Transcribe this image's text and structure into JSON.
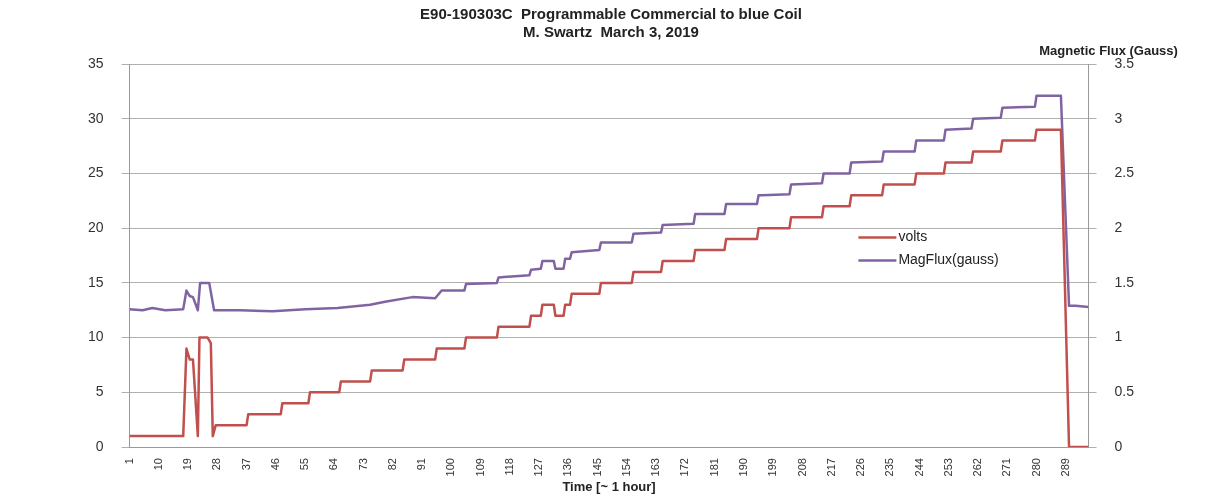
{
  "chart_data": {
    "type": "line",
    "title": "E90-190303C  Programmable Commercial to blue Coil",
    "subtitle": "M. Swartz  March 3, 2019",
    "xlabel": "Time [~ 1 hour]",
    "y2label": "Magnetic Flux (Gauss)",
    "xlim": [
      1,
      296
    ],
    "xticks": [
      1,
      10,
      19,
      28,
      37,
      46,
      55,
      64,
      73,
      82,
      91,
      100,
      109,
      118,
      127,
      136,
      145,
      154,
      163,
      172,
      181,
      190,
      199,
      208,
      217,
      226,
      235,
      244,
      253,
      262,
      271,
      280,
      289
    ],
    "ylim": [
      0,
      35
    ],
    "yticks": [
      0,
      5,
      10,
      15,
      20,
      25,
      30,
      35
    ],
    "y2lim": [
      0,
      3.5
    ],
    "y2ticks": [
      0,
      0.5,
      1,
      1.5,
      2,
      2.5,
      3,
      3.5
    ],
    "grid": "y",
    "legend": "right",
    "marker": "none",
    "line_style": "solid",
    "series": [
      {
        "name": "volts",
        "color": "#c0504d",
        "x": [
          1,
          17.5,
          18.5,
          19.5,
          20.5,
          22,
          22.5,
          25,
          26,
          26.6,
          27.5,
          37,
          37.5,
          47.5,
          48,
          56,
          56.5,
          65.5,
          66,
          75,
          75.5,
          85,
          85.5,
          95,
          95.5,
          104,
          104.5,
          114,
          114.5,
          124,
          124.5,
          127.5,
          128,
          131.5,
          132,
          134.5,
          135,
          136.5,
          137,
          145.5,
          146,
          155.5,
          156,
          164.5,
          165,
          174.5,
          175,
          184,
          184.5,
          194,
          194.5,
          204,
          204.5,
          214,
          214.5,
          222.5,
          223,
          232.5,
          233,
          242.5,
          243,
          251.5,
          252,
          260,
          260.5,
          269,
          269.5,
          279.5,
          280,
          287.5,
          290,
          296
        ],
        "values": [
          1,
          1,
          9,
          8,
          8,
          1,
          10,
          10,
          9.5,
          1,
          2,
          2,
          3,
          3,
          4,
          4,
          5,
          5,
          6,
          6,
          7,
          7,
          8,
          8,
          9,
          9,
          10,
          10,
          11,
          11,
          12,
          12,
          13,
          13,
          12,
          12,
          13,
          13,
          14,
          14,
          15,
          15,
          16,
          16,
          17,
          17,
          18,
          18,
          19,
          19,
          20,
          20,
          21,
          21,
          22,
          22,
          23,
          23,
          24,
          24,
          25,
          25,
          26,
          26,
          27,
          27,
          28,
          28,
          29,
          29,
          0,
          0
        ]
      },
      {
        "name": "MagFlux(gauss)",
        "color": "#8064a2",
        "axis": "y2",
        "x": [
          1,
          5,
          8,
          12,
          17.5,
          18.5,
          19.5,
          20.5,
          22,
          22.7,
          25.5,
          27,
          35,
          45,
          55,
          65,
          75,
          80,
          88,
          95,
          97,
          104,
          104.5,
          114,
          114.5,
          124,
          124.5,
          127.5,
          128,
          131.5,
          132,
          134.5,
          135,
          136.5,
          137,
          145.5,
          146,
          155.5,
          156,
          164.5,
          165,
          174.5,
          175,
          184,
          184.5,
          194,
          194.5,
          204,
          204.5,
          214,
          214.5,
          222.5,
          223,
          232.5,
          233,
          242.5,
          243,
          251.5,
          252,
          260,
          260.5,
          269,
          269.5,
          279.5,
          280,
          287.5,
          290,
          292,
          296
        ],
        "values": [
          1.26,
          1.25,
          1.27,
          1.25,
          1.26,
          1.43,
          1.38,
          1.37,
          1.25,
          1.5,
          1.5,
          1.25,
          1.25,
          1.24,
          1.26,
          1.27,
          1.3,
          1.33,
          1.37,
          1.36,
          1.43,
          1.43,
          1.49,
          1.5,
          1.55,
          1.57,
          1.62,
          1.63,
          1.7,
          1.7,
          1.63,
          1.63,
          1.72,
          1.72,
          1.78,
          1.8,
          1.87,
          1.87,
          1.95,
          1.96,
          2.03,
          2.04,
          2.13,
          2.13,
          2.22,
          2.22,
          2.3,
          2.31,
          2.4,
          2.41,
          2.5,
          2.5,
          2.6,
          2.61,
          2.7,
          2.7,
          2.8,
          2.8,
          2.9,
          2.91,
          3,
          3.01,
          3.1,
          3.11,
          3.21,
          3.21,
          1.29,
          1.29,
          1.28
        ]
      }
    ]
  }
}
